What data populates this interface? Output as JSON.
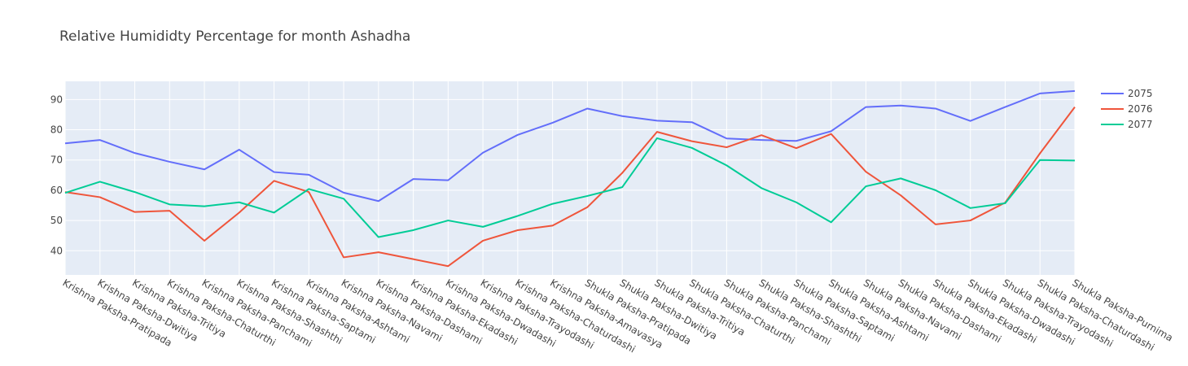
{
  "chart_data": {
    "type": "line",
    "title": "Relative Humididty Percentage for month Ashadha",
    "xlabel": "",
    "ylabel": "",
    "ylim": [
      32,
      96
    ],
    "yticks": [
      40,
      50,
      60,
      70,
      80,
      90
    ],
    "grid": true,
    "legend_position": "top-right",
    "background": "#e5ecf6",
    "categories": [
      "Krishna Paksha-Pratipada",
      "Krishna Paksha-Dwitiya",
      "Krishna Paksha-Tritiya",
      "Krishna Paksha-Chaturthi",
      "Krishna Paksha-Panchami",
      "Krishna Paksha-Shashthi",
      "Krishna Paksha-Saptami",
      "Krishna Paksha-Ashtami",
      "Krishna Paksha-Navami",
      "Krishna Paksha-Dashami",
      "Krishna Paksha-Ekadashi",
      "Krishna Paksha-Dwadashi",
      "Krishna Paksha-Trayodashi",
      "Krishna Paksha-Chaturdashi",
      "Krishna Paksha-Amavasya",
      "Shukla Paksha-Pratipada",
      "Shukla Paksha-Dwitiya",
      "Shukla Paksha-Tritiya",
      "Shukla Paksha-Chaturthi",
      "Shukla Paksha-Panchami",
      "Shukla Paksha-Shashthi",
      "Shukla Paksha-Saptami",
      "Shukla Paksha-Ashtami",
      "Shukla Paksha-Navami",
      "Shukla Paksha-Dashami",
      "Shukla Paksha-Ekadashi",
      "Shukla Paksha-Dwadashi",
      "Shukla Paksha-Trayodashi",
      "Shukla Paksha-Chaturdashi",
      "Shukla Paksha-Purnima"
    ],
    "series": [
      {
        "name": "2075",
        "color": "#636efa",
        "values": [
          75.5,
          76.6,
          72.3,
          69.4,
          66.9,
          73.4,
          66.0,
          65.1,
          59.2,
          56.4,
          63.7,
          63.3,
          72.4,
          78.3,
          82.3,
          87.0,
          84.5,
          83.0,
          82.5,
          77.1,
          76.6,
          76.3,
          79.5,
          87.5,
          88.0,
          87.0,
          82.9,
          87.5,
          92.0,
          92.8
        ]
      },
      {
        "name": "2076",
        "color": "#ef553b",
        "values": [
          59.4,
          57.7,
          52.8,
          53.2,
          43.3,
          52.6,
          63.1,
          59.4,
          37.8,
          39.5,
          37.2,
          34.9,
          43.3,
          46.8,
          48.3,
          54.4,
          65.7,
          79.3,
          76.2,
          74.2,
          78.2,
          73.9,
          78.6,
          66.1,
          58.3,
          48.7,
          50.0,
          55.9,
          72.2,
          87.5
        ]
      },
      {
        "name": "2077",
        "color": "#00cc96",
        "values": [
          59.1,
          62.8,
          59.4,
          55.3,
          54.7,
          56.0,
          52.6,
          60.4,
          57.2,
          44.5,
          46.8,
          50.0,
          47.9,
          51.5,
          55.5,
          58.1,
          61.0,
          77.2,
          74.0,
          68.2,
          60.7,
          56.0,
          49.4,
          61.3,
          63.9,
          60.0,
          54.1,
          55.7,
          70.0,
          69.8
        ]
      }
    ]
  }
}
